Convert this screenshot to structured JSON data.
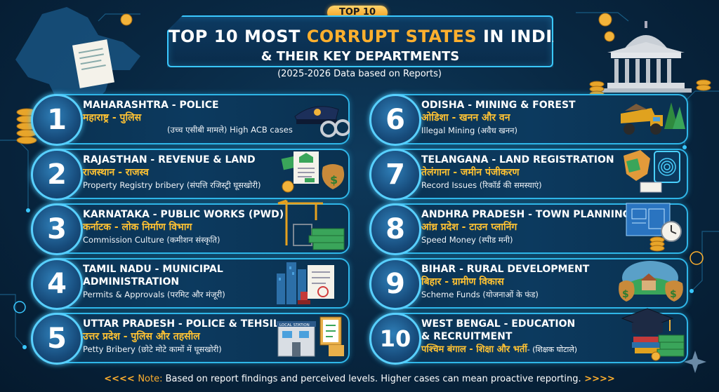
{
  "badge": "TOP 10",
  "title": {
    "line1_pre": "TOP 10 MOST ",
    "line1_highlight": "CORRUPT STATES",
    "line1_post": " IN INDIA",
    "line2": "& THEIR KEY DEPARTMENTS"
  },
  "subtitle": "(2025-2026 Data based on Reports)",
  "items": [
    {
      "num": "1",
      "state": "MAHARASHTRA - POLICE",
      "hindi": "महाराष्ट्र - पुलिस",
      "note": "(उच्च एसीबी मामले) High ACB cases",
      "icon": "police-cap-handcuffs-icon"
    },
    {
      "num": "2",
      "state": "RAJASTHAN - REVENUE & LAND",
      "hindi": "राजस्थान - राजस्व",
      "note": "Property Registry bribery (संपत्ति रजिस्ट्री घूसखोरी)",
      "icon": "land-document-money-icon"
    },
    {
      "num": "3",
      "state": "KARNATAKA - PUBLIC WORKS (PWD)",
      "hindi": "कर्नाटक - लोक निर्माण विभाग",
      "note": "Commission Culture (कमीशन संस्कृति)",
      "icon": "crane-cash-icon"
    },
    {
      "num": "4",
      "state": "TAMIL NADU - MUNICIPAL",
      "state2": "ADMINISTRATION",
      "hindi": "",
      "note": "Permits & Approvals (परमिट और मंजूरी)",
      "icon": "city-permit-stamp-icon"
    },
    {
      "num": "5",
      "state": "UTTAR PRADESH - POLICE & TEHSIL",
      "hindi": "उत्तर प्रदेश - पुलिस और तहसील",
      "note": "Petty Bribery (छोटे मोटे कामों में घूसखोरी)",
      "icon": "local-station-clipboard-icon",
      "icon_label": "LOCAL STATION"
    },
    {
      "num": "6",
      "state": "ODISHA - MINING & FOREST",
      "hindi": "ओडिशा - खनन और वन",
      "note": "Illegal Mining (अवैध खनन)",
      "icon": "mining-truck-forest-icon"
    },
    {
      "num": "7",
      "state": "TELANGANA - LAND REGISTRATION",
      "hindi": "तेलंगाना - जमीन पंजीकरण",
      "note": "Record Issues (रिकॉर्ड की समस्याएं)",
      "icon": "map-fingerprint-icon"
    },
    {
      "num": "8",
      "state": "ANDHRA PRADESH - TOWN PLANNING",
      "hindi": "आंध्र प्रदेश - टाउन प्लानिंग",
      "note": "Speed Money (स्पीड मनी)",
      "icon": "blueprint-clock-coins-icon"
    },
    {
      "num": "9",
      "state": "BIHAR - RURAL DEVELOPMENT",
      "hindi": "बिहार - ग्रामीण विकास",
      "note": "Scheme Funds (योजनाओं के फंड)",
      "icon": "village-money-bags-icon"
    },
    {
      "num": "10",
      "state": "WEST BENGAL - EDUCATION",
      "state2": "& RECRUITMENT",
      "hindi": "पश्चिम बंगाल - शिक्षा और भर्ती",
      "note": "- (शिक्षक घोटाले)",
      "icon": "grad-cap-books-cash-icon"
    }
  ],
  "footer": {
    "label": "Note:",
    "text": " Based on report findings and perceived levels. Higher cases can mean proactive reporting."
  },
  "colors": {
    "accent": "#ffb02e",
    "border": "#2fb6e8",
    "hindi": "#ffc233",
    "background": "#082640"
  }
}
